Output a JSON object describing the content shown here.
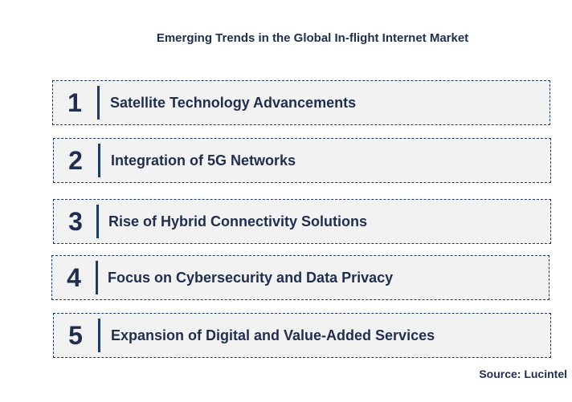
{
  "title": "Emerging Trends in the Global In-flight Internet Market",
  "trends": [
    {
      "number": "1",
      "label": "Satellite Technology Advancements"
    },
    {
      "number": "2",
      "label": "Integration of 5G Networks"
    },
    {
      "number": "3",
      "label": "Rise of Hybrid Connectivity Solutions"
    },
    {
      "number": "4",
      "label": "Focus on Cybersecurity and Data Privacy"
    },
    {
      "number": "5",
      "label": "Expansion of Digital and Value-Added Services"
    }
  ],
  "source": "Source: Lucintel",
  "colors": {
    "text": "#1f2d4e",
    "row_fill": "#f2f2f2",
    "border": "#1f3a64"
  }
}
